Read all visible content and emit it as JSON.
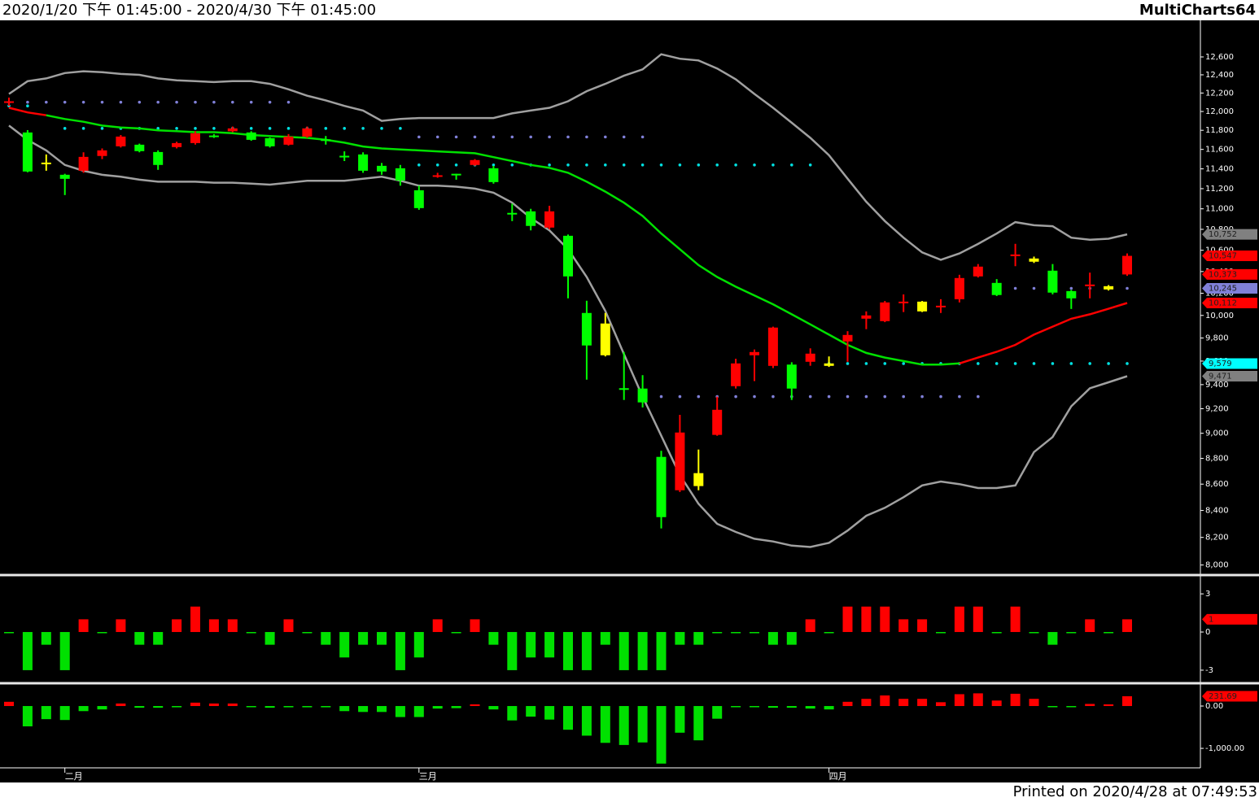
{
  "header": {
    "range": "2020/1/20 下午 01:45:00 - 2020/4/30 下午 01:45:00",
    "brand": "MultiCharts64"
  },
  "footer": "Printed on 2020/4/28 at 07:49:53",
  "chart_data": [
    {
      "type": "candlestick",
      "log": true,
      "ylim": [
        7940,
        13000
      ],
      "yticks": [
        {
          "value": 8000,
          "label": "8,000"
        },
        {
          "value": 8200,
          "label": "8,200"
        },
        {
          "value": 8400,
          "label": "8,400"
        },
        {
          "value": 8600,
          "label": "8,600"
        },
        {
          "value": 8800,
          "label": "8,800"
        },
        {
          "value": 9000,
          "label": "9,000"
        },
        {
          "value": 9200,
          "label": "9,200"
        },
        {
          "value": 9400,
          "label": "9,400"
        },
        {
          "value": 9600,
          "label": "9,600"
        },
        {
          "value": 9800,
          "label": "9,800"
        },
        {
          "value": 10000,
          "label": "10,000"
        },
        {
          "value": 10200,
          "label": "10,200"
        },
        {
          "value": 10400,
          "label": "10,400"
        },
        {
          "value": 10600,
          "label": "10,600"
        },
        {
          "value": 10800,
          "label": "10,800"
        },
        {
          "value": 11000,
          "label": "11,000"
        },
        {
          "value": 11200,
          "label": "11,200"
        },
        {
          "value": 11400,
          "label": "11,400"
        },
        {
          "value": 11600,
          "label": "11,600"
        },
        {
          "value": 11800,
          "label": "11,800"
        },
        {
          "value": 12000,
          "label": "12,000"
        },
        {
          "value": 12200,
          "label": "12,200"
        },
        {
          "value": 12400,
          "label": "12,400"
        },
        {
          "value": 12600,
          "label": "12,600"
        }
      ],
      "open": [
        12100,
        11777,
        11464,
        11340,
        11381,
        11532,
        11632,
        11649,
        11573,
        11624,
        11666,
        11740,
        11790,
        11777,
        11717,
        11649,
        11734,
        11705,
        11534,
        11548,
        11431,
        11406,
        11184,
        11330,
        11350,
        11440,
        11406,
        10960,
        10975,
        10817,
        10738,
        10022,
        9928,
        9370,
        9367,
        8812,
        8553,
        8685,
        8987,
        9387,
        9650,
        9559,
        9570,
        9594,
        9580,
        9770,
        9971,
        9949,
        10120,
        10124,
        10084,
        10146,
        10355,
        10295,
        10555,
        10522,
        10408,
        10220,
        10276,
        10265,
        10373
      ],
      "high": [
        12150,
        11802,
        11548,
        11350,
        11570,
        11610,
        11750,
        11660,
        11590,
        11680,
        11790,
        11760,
        11840,
        11790,
        11725,
        11760,
        11840,
        11740,
        11580,
        11570,
        11460,
        11440,
        11230,
        11360,
        11350,
        11500,
        11430,
        11050,
        11000,
        11030,
        10750,
        10132,
        10022,
        9678,
        9480,
        8860,
        9150,
        8870,
        9300,
        9620,
        9700,
        9900,
        9590,
        9710,
        9640,
        9860,
        10036,
        10130,
        10190,
        10130,
        10146,
        10370,
        10470,
        10330,
        10661,
        10540,
        10470,
        10230,
        10390,
        10275,
        10570
      ],
      "low": [
        12060,
        11365,
        11381,
        11136,
        11360,
        11500,
        11620,
        11570,
        11390,
        11610,
        11650,
        11720,
        11780,
        11690,
        11620,
        11640,
        11720,
        11650,
        11480,
        11360,
        11340,
        11230,
        10990,
        11310,
        11290,
        11430,
        11250,
        10880,
        10790,
        10800,
        10154,
        9442,
        9640,
        9272,
        9210,
        8266,
        8540,
        8553,
        8980,
        9367,
        9430,
        9540,
        9272,
        9560,
        9550,
        9594,
        9878,
        9940,
        10030,
        10030,
        10022,
        10117,
        10345,
        10175,
        10450,
        10480,
        10190,
        10058,
        10154,
        10225,
        10360
      ],
      "close": [
        12110,
        11373,
        11464,
        11299,
        11523,
        11590,
        11734,
        11582,
        11440,
        11666,
        11768,
        11745,
        11820,
        11700,
        11632,
        11734,
        11820,
        11700,
        11530,
        11381,
        11373,
        11282,
        11007,
        11335,
        11345,
        11490,
        11266,
        10955,
        10833,
        10975,
        10355,
        9735,
        9650,
        9367,
        9252,
        8350,
        9006,
        8585,
        9191,
        9580,
        9678,
        9892,
        9367,
        9664,
        9559,
        9827,
        10000,
        10117,
        10124,
        10036,
        10087,
        10340,
        10446,
        10184,
        10560,
        10492,
        10206,
        10154,
        10280,
        10235,
        10547
      ],
      "candle_colors": [
        "#ff0000",
        "#00ff00",
        "#ffff00",
        "#00ff00",
        "#ff0000",
        "#ff0000",
        "#ff0000",
        "#00ff00",
        "#00ff00",
        "#ff0000",
        "#ff0000",
        "#00ff00",
        "#ff0000",
        "#00ff00",
        "#00ff00",
        "#ff0000",
        "#ff0000",
        "#00ff00",
        "#00ff00",
        "#00ff00",
        "#00ff00",
        "#00ff00",
        "#00ff00",
        "#ff0000",
        "#00ff00",
        "#ff0000",
        "#00ff00",
        "#00ff00",
        "#00ff00",
        "#ff0000",
        "#00ff00",
        "#00ff00",
        "#ffff00",
        "#00ff00",
        "#00ff00",
        "#00ff00",
        "#ff0000",
        "#ffff00",
        "#ff0000",
        "#ff0000",
        "#ff0000",
        "#ff0000",
        "#00ff00",
        "#ff0000",
        "#ffff00",
        "#ff0000",
        "#ff0000",
        "#ff0000",
        "#ff0000",
        "#ffff00",
        "#ff0000",
        "#ff0000",
        "#ff0000",
        "#00ff00",
        "#ff0000",
        "#ffff00",
        "#00ff00",
        "#00ff00",
        "#ff0000",
        "#ffff00",
        "#ff0000"
      ],
      "lines": [
        {
          "color": "#a0a0a0",
          "values": [
            12190,
            12330,
            12360,
            12420,
            12440,
            12430,
            12410,
            12400,
            12360,
            12340,
            12330,
            12320,
            12330,
            12330,
            12300,
            12240,
            12170,
            12120,
            12060,
            12010,
            11900,
            11920,
            11930,
            11930,
            11930,
            11930,
            11930,
            11980,
            12010,
            12040,
            12110,
            12220,
            12300,
            12390,
            12460,
            12630,
            12580,
            12560,
            12470,
            12350,
            12190,
            12040,
            11880,
            11720,
            11540,
            11300,
            11070,
            10880,
            10720,
            10580,
            10510,
            10570,
            10660,
            10760,
            10870,
            10840,
            10830,
            10720,
            10700,
            10710,
            10752
          ]
        },
        {
          "color": "#a0a0a0",
          "values": [
            11850,
            11700,
            11590,
            11440,
            11380,
            11340,
            11320,
            11290,
            11270,
            11270,
            11270,
            11260,
            11260,
            11250,
            11240,
            11260,
            11280,
            11280,
            11280,
            11300,
            11320,
            11280,
            11230,
            11230,
            11220,
            11200,
            11160,
            11060,
            10910,
            10790,
            10610,
            10350,
            10040,
            9660,
            9300,
            8980,
            8670,
            8450,
            8300,
            8240,
            8190,
            8170,
            8140,
            8130,
            8160,
            8250,
            8360,
            8420,
            8500,
            8590,
            8620,
            8600,
            8570,
            8570,
            8590,
            8850,
            8970,
            9220,
            9370,
            9420,
            9471
          ]
        },
        {
          "color": "#ff0000",
          "values": [
            12040,
            11990,
            11960,
            null,
            null,
            null,
            null,
            null,
            null,
            null,
            null,
            null,
            null,
            null,
            null,
            null,
            null,
            null,
            null,
            null,
            null,
            null,
            null,
            null,
            null,
            null,
            null,
            null,
            null,
            null,
            null,
            null,
            null,
            null,
            null,
            null,
            null,
            null,
            null,
            null,
            null,
            null,
            null,
            null,
            null,
            null,
            null,
            null,
            null,
            null,
            null,
            9580,
            9630,
            9680,
            9740,
            9830,
            9900,
            9970,
            10010,
            10060,
            10112
          ]
        },
        {
          "color": "#00e000",
          "values": [
            null,
            null,
            11960,
            11920,
            11890,
            11850,
            11830,
            11820,
            11800,
            11790,
            11780,
            11780,
            11770,
            11750,
            11740,
            11730,
            11720,
            11700,
            11670,
            11630,
            11610,
            11600,
            11590,
            11580,
            11570,
            11560,
            11520,
            11480,
            11440,
            11410,
            11360,
            11270,
            11170,
            11060,
            10930,
            10760,
            10610,
            10460,
            10350,
            10260,
            10180,
            10100,
            10010,
            9920,
            9830,
            9740,
            9670,
            9630,
            9600,
            9570,
            9570,
            9580,
            null,
            null,
            null,
            null,
            null,
            null,
            null,
            null,
            null
          ]
        }
      ],
      "levels": [
        {
          "value": 12100,
          "from": 0,
          "to": 15,
          "color": "#8080d8"
        },
        {
          "value": 12060,
          "from": 0,
          "to": 1,
          "color": "#00e0e0"
        },
        {
          "value": 11820,
          "from": 3,
          "to": 21,
          "color": "#00e0e0"
        },
        {
          "value": 11730,
          "from": 22,
          "to": 34,
          "color": "#8080d8"
        },
        {
          "value": 11440,
          "from": 22,
          "to": 43,
          "color": "#00e0e0"
        },
        {
          "value": 9300,
          "from": 35,
          "to": 52,
          "color": "#8080d8"
        },
        {
          "value": 9579,
          "from": 44,
          "to": 60,
          "color": "#00e0e0"
        },
        {
          "value": 10245,
          "from": 53,
          "to": 60,
          "color": "#8080d8"
        }
      ],
      "last_labels": [
        {
          "value": 10752,
          "label": "10,752",
          "color": "#808080"
        },
        {
          "value": 10547,
          "label": "10,547",
          "color": "#ff0000"
        },
        {
          "value": 10373,
          "label": "10,373",
          "color": "#ff0000"
        },
        {
          "value": 10245,
          "label": "10,245",
          "color": "#8080d8"
        },
        {
          "value": 10112,
          "label": "10,112",
          "color": "#ff0000"
        },
        {
          "value": 9579,
          "label": "9,579",
          "color": "#00ffff"
        },
        {
          "value": 9471,
          "label": "9,471",
          "color": "#808080"
        }
      ]
    },
    {
      "type": "bar",
      "ylim": [
        -3.9,
        4.35
      ],
      "yticks": [
        3,
        0,
        -3
      ],
      "up_color": "#ff0000",
      "down_color": "#00e000",
      "values": [
        0,
        -3,
        -1,
        -3,
        1,
        0,
        1,
        -1,
        -1,
        1,
        2,
        1,
        1,
        0,
        -1,
        1,
        0,
        -1,
        -2,
        -1,
        -1,
        -3,
        -2,
        1,
        0,
        1,
        -1,
        -3,
        -2,
        -2,
        -3,
        -3,
        -1,
        -3,
        -3,
        -3,
        -1,
        -1,
        0,
        0,
        0,
        -1,
        -1,
        1,
        0,
        2,
        2,
        2,
        1,
        1,
        0,
        2,
        2,
        0,
        2,
        0,
        -1,
        0,
        1,
        0,
        1
      ],
      "last_labels": [
        {
          "value": 1,
          "color": "#ff0000"
        }
      ]
    },
    {
      "type": "bar",
      "ylim": [
        -1460,
        500
      ],
      "yticks": [
        {
          "value": 0,
          "label": "0.00"
        },
        {
          "value": -1000,
          "label": "-1,000.00"
        }
      ],
      "up_color": "#ff0000",
      "down_color": "#00e000",
      "values": [
        100,
        -480,
        -310,
        -330,
        -120,
        -80,
        60,
        -40,
        -40,
        -30,
        80,
        60,
        60,
        -20,
        -40,
        -30,
        -30,
        -30,
        -120,
        -140,
        -140,
        -260,
        -260,
        -60,
        -50,
        40,
        -80,
        -340,
        -250,
        -320,
        -560,
        -700,
        -870,
        -920,
        -860,
        -1360,
        -630,
        -810,
        -300,
        -20,
        -10,
        -40,
        -40,
        -60,
        -80,
        100,
        170,
        250,
        170,
        170,
        90,
        280,
        300,
        130,
        290,
        170,
        -20,
        -20,
        50,
        40,
        231.69
      ],
      "last_labels": [
        {
          "value": 231.69,
          "color": "#ff0000"
        }
      ],
      "categories": [
        null,
        null,
        null,
        "二月",
        null,
        null,
        null,
        null,
        null,
        null,
        null,
        null,
        null,
        null,
        null,
        null,
        null,
        null,
        null,
        null,
        null,
        null,
        "三月",
        null,
        null,
        null,
        null,
        null,
        null,
        null,
        null,
        null,
        null,
        null,
        null,
        null,
        null,
        null,
        null,
        null,
        null,
        null,
        null,
        null,
        "四月",
        null,
        null,
        null,
        null,
        null,
        null,
        null,
        null,
        null,
        null,
        null,
        null,
        null,
        null,
        null,
        null
      ]
    }
  ]
}
